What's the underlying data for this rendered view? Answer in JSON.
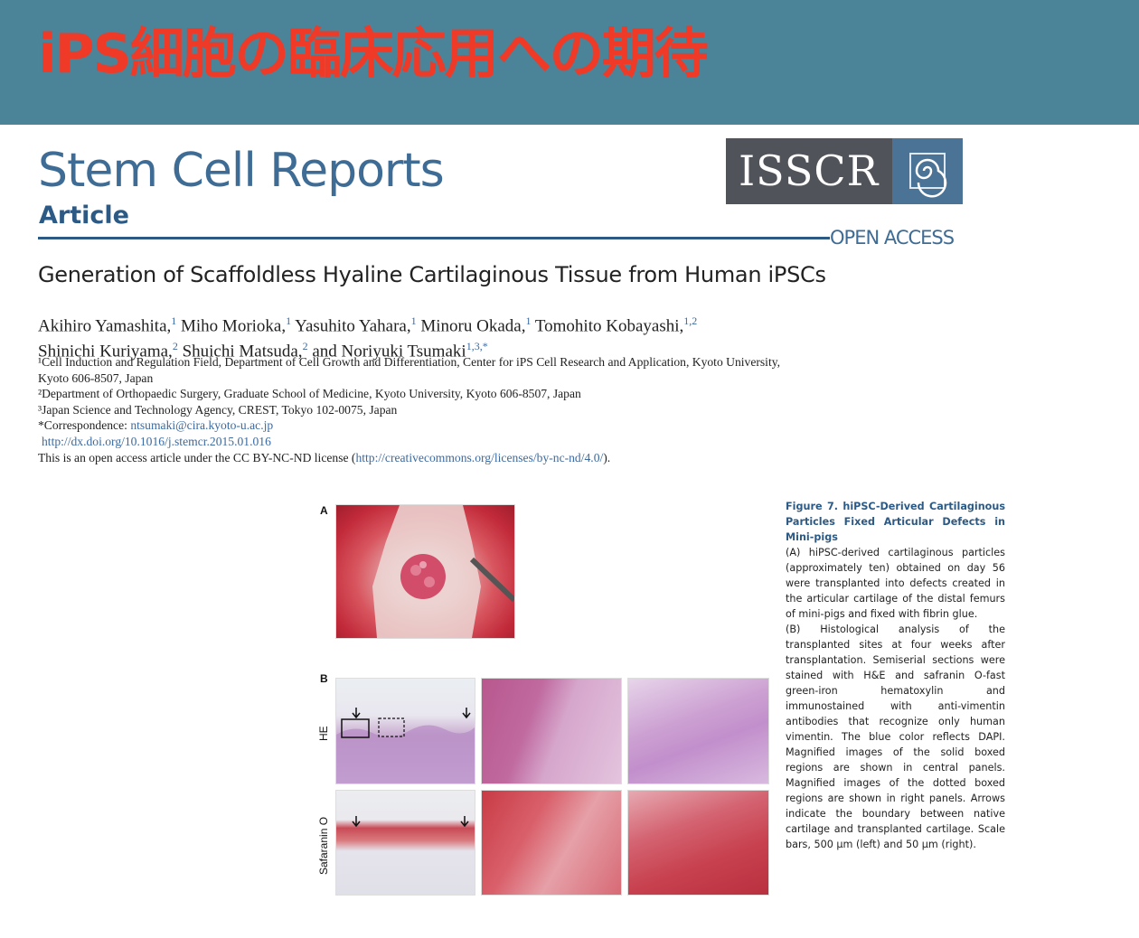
{
  "slide": {
    "title": "iPS細胞の臨床応用への期待"
  },
  "paper": {
    "journal": "Stem Cell Reports",
    "article_type": "Article",
    "logo_text": "ISSCR",
    "open_access": "OPEN ACCESS",
    "title": "Generation of Scaffoldless Hyaline Cartilaginous Tissue from Human iPSCs",
    "authors_line1": [
      {
        "name": "Akihiro Yamashita,",
        "sup": "1"
      },
      {
        "name": "Miho Morioka,",
        "sup": "1"
      },
      {
        "name": "Yasuhito Yahara,",
        "sup": "1"
      },
      {
        "name": "Minoru Okada,",
        "sup": "1"
      },
      {
        "name": "Tomohito Kobayashi,",
        "sup": "1,2"
      }
    ],
    "authors_line2": [
      {
        "name": "Shinichi Kuriyama,",
        "sup": "2"
      },
      {
        "name": "Shuichi Matsuda,",
        "sup": "2"
      },
      {
        "name": "and Noriyuki Tsumaki",
        "sup": "1,3,*"
      }
    ],
    "affiliations": [
      "¹Cell Induction and Regulation Field, Department of Cell Growth and Differentiation, Center for iPS Cell Research and Application, Kyoto University,",
      "Kyoto 606-8507, Japan",
      "²Department of Orthopaedic Surgery, Graduate School of Medicine, Kyoto University, Kyoto 606-8507, Japan",
      "³Japan Science and Technology Agency, CREST, Tokyo 102-0075, Japan"
    ],
    "correspondence_label": "*Correspondence: ",
    "correspondence_email": "ntsumaki@cira.kyoto-u.ac.jp",
    "doi": "http://dx.doi.org/10.1016/j.stemcr.2015.01.016",
    "license_prefix": "This is an open access article under the CC BY-NC-ND license (",
    "license_url": "http://creativecommons.org/licenses/by-nc-nd/4.0/",
    "license_suffix": ")."
  },
  "figure": {
    "panel_a": "A",
    "panel_b": "B",
    "row_he": "HE",
    "row_safranin": "Safaranin O",
    "caption_title": "Figure 7. hiPSC-Derived Cartilaginous Particles Fixed Articular Defects in Mini-pigs",
    "caption_a": "(A) hiPSC-derived cartilaginous particles (approximately ten) obtained on day 56 were transplanted into defects created in the articular cartilage of the distal femurs of mini-pigs and fixed with fibrin glue.",
    "caption_b": "(B) Histological analysis of the transplanted sites at four weeks after transplantation. Semiserial sections were stained with H&E and safranin O-fast green-iron hematoxylin and immunostained with anti-vimentin antibodies that recognize only human vimentin. The blue color reflects DAPI. Magnified images of the solid boxed regions are shown in central panels. Magnified images of the dotted boxed regions are shown in right panels. Arrows indicate the boundary between native cartilage and transplanted cartilage. Scale bars, 500 μm (left) and 50 μm (right)."
  },
  "colors": {
    "header_bg": "#4b8398",
    "title_red": "#ef3a28",
    "journal_blue": "#3e6c95",
    "logo_gray": "#505359"
  }
}
